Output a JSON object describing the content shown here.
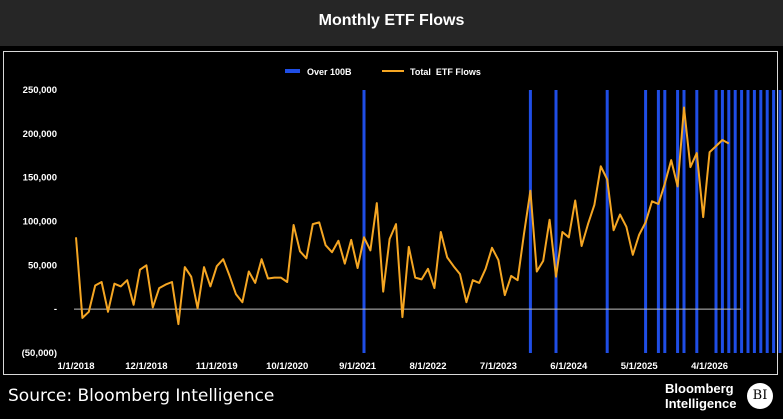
{
  "chart_data": {
    "type": "line",
    "title": "Monthly ETF Flows",
    "xlabel": "",
    "ylabel": "",
    "ylim": [
      -50000,
      250000
    ],
    "y_ticks": [
      "250,000",
      "200,000",
      "150,000",
      "100,000",
      "50,000",
      "-",
      "(50,000)"
    ],
    "y_tick_values": [
      250000,
      200000,
      150000,
      100000,
      50000,
      0,
      -50000
    ],
    "x_tick_labels": [
      "1/1/2018",
      "12/1/2018",
      "11/1/2019",
      "10/1/2020",
      "9/1/2021",
      "8/1/2022",
      "7/1/2023",
      "6/1/2024",
      "5/1/2025",
      "4/1/2026"
    ],
    "legend_position": "top",
    "grid": false,
    "series": [
      {
        "name": "Total  ETF Flows",
        "type": "line",
        "color": "#f5a623",
        "start": "1/1/2018",
        "frequency": "monthly",
        "values": [
          82000,
          -10000,
          -3000,
          27000,
          31000,
          -3000,
          29000,
          26000,
          33000,
          5000,
          45000,
          50000,
          2000,
          24000,
          28000,
          31000,
          -17000,
          48000,
          37000,
          1000,
          48000,
          26000,
          49000,
          57000,
          38000,
          17000,
          8000,
          43000,
          30000,
          57000,
          35000,
          36000,
          36000,
          31000,
          96000,
          66000,
          58000,
          97000,
          99000,
          73000,
          65000,
          78000,
          52000,
          79000,
          47000,
          82000,
          67000,
          121000,
          20000,
          80000,
          97000,
          -9000,
          71000,
          36000,
          34000,
          46000,
          24000,
          88000,
          59000,
          49000,
          40000,
          8000,
          33000,
          30000,
          46000,
          70000,
          56000,
          16000,
          38000,
          33000,
          86000,
          135000,
          43000,
          55000,
          102000,
          37000,
          88000,
          82000,
          124000,
          72000,
          97000,
          119000,
          163000,
          148000,
          90000,
          108000,
          94000,
          62000,
          85000,
          99000,
          123000,
          120000,
          143000,
          170000,
          140000,
          230000,
          162000,
          178000,
          105000,
          179000,
          186000,
          193000,
          189000
        ]
      }
    ],
    "bar_series": {
      "name": "Over 100B",
      "type": "bar",
      "color": "#1f4ee6",
      "values_at": [
        "10/1/2021",
        "12/1/2023",
        "4/1/2024",
        "12/1/2024",
        "6/1/2025",
        "8/1/2025",
        "9/1/2025",
        "11/1/2025",
        "12/1/2025",
        "2/1/2026",
        "5/1/2026",
        "6/1/2026",
        "7/1/2026",
        "8/1/2026",
        "9/1/2026",
        "10/1/2026",
        "11/1/2026",
        "12/1/2026",
        "1/1/2027",
        "2/1/2027",
        "3/1/2027",
        "4/1/2027",
        "5/1/2027",
        "6/1/2027",
        "7/1/2027"
      ],
      "value": 250000
    }
  },
  "footer": {
    "source": "Source: Bloomberg Intelligence",
    "logo_line1": "Bloomberg",
    "logo_line2": "Intelligence",
    "logo_badge": "BI"
  }
}
